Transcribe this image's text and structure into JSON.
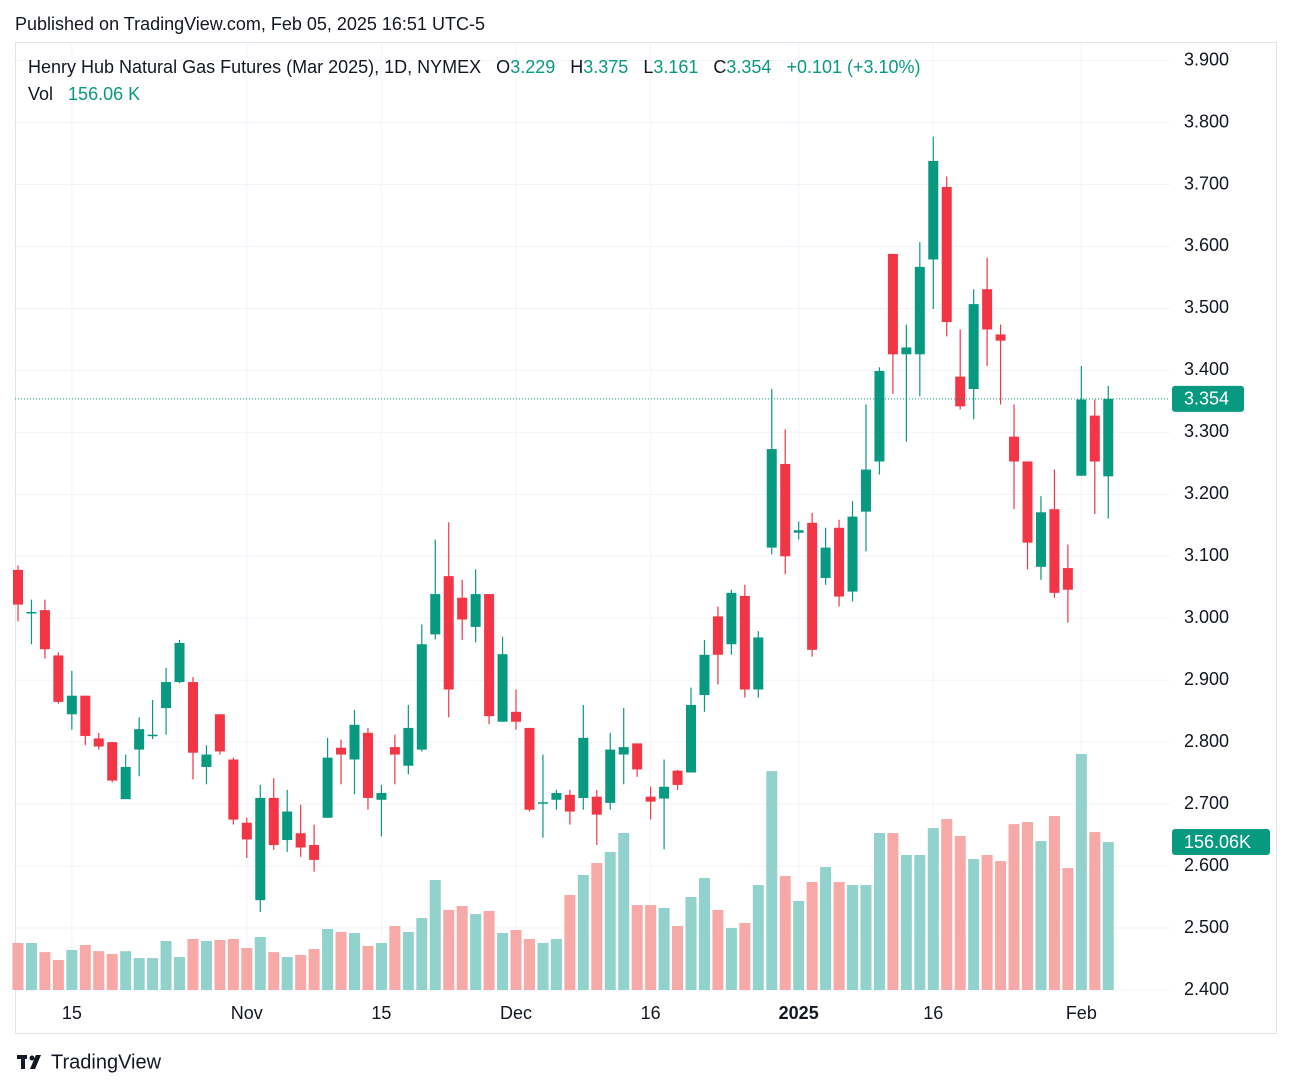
{
  "published": "Published on TradingView.com, Feb 05, 2025 16:51 UTC-5",
  "footer": "TradingView",
  "chart_data": {
    "type": "candlestick",
    "title": "Henry Hub Natural Gas Futures (Mar 2025), 1D, NYMEX",
    "ohlc_labels": [
      "O",
      "H",
      "L",
      "C"
    ],
    "change": "+0.101 (+3.10%)",
    "up_color": "#089981",
    "down_color": "#f23645",
    "volume_up_color": "#92d2cc",
    "volume_down_color": "#f7a9a7",
    "categories": [
      null,
      null,
      null,
      null,
      "15",
      null,
      null,
      null,
      null,
      null,
      null,
      null,
      null,
      null,
      null,
      null,
      null,
      "Nov",
      null,
      null,
      null,
      null,
      null,
      null,
      null,
      null,
      null,
      "15",
      null,
      null,
      null,
      null,
      null,
      null,
      null,
      null,
      null,
      "Dec",
      null,
      null,
      null,
      null,
      null,
      null,
      null,
      null,
      null,
      "16",
      null,
      null,
      null,
      null,
      null,
      null,
      null,
      null,
      null,
      null,
      "2025",
      null,
      null,
      null,
      null,
      null,
      null,
      null,
      null,
      null,
      "16",
      null,
      null,
      null,
      null,
      null,
      null,
      null,
      null,
      null,
      null,
      "Feb",
      null,
      null
    ],
    "open": [
      3.078,
      3.008,
      3.013,
      2.94,
      2.845,
      2.875,
      2.806,
      2.8,
      2.708,
      2.788,
      2.81,
      2.855,
      2.897,
      2.897,
      2.76,
      2.845,
      2.772,
      2.67,
      2.545,
      2.71,
      2.642,
      2.653,
      2.634,
      2.678,
      2.791,
      2.772,
      2.815,
      2.707,
      2.792,
      2.762,
      2.788,
      2.974,
      3.068,
      3.033,
      2.986,
      3.039,
      2.833,
      2.849,
      2.823,
      2.702,
      2.707,
      2.715,
      2.71,
      2.712,
      2.702,
      2.78,
      2.798,
      2.712,
      2.709,
      2.754,
      2.751,
      2.876,
      3.003,
      2.958,
      3.036,
      2.885,
      3.114,
      3.249,
      3.138,
      3.154,
      3.065,
      3.146,
      3.043,
      3.172,
      3.253,
      3.588,
      3.426,
      3.426,
      3.579,
      3.696,
      3.39,
      3.37,
      3.531,
      3.458,
      3.293,
      3.253,
      3.083,
      3.176,
      3.081,
      3.23,
      3.327,
      3.229
    ],
    "high": [
      3.085,
      3.03,
      3.03,
      2.945,
      2.915,
      2.875,
      2.815,
      2.8,
      2.78,
      2.84,
      2.868,
      2.92,
      2.965,
      2.905,
      2.795,
      2.845,
      2.775,
      2.678,
      2.731,
      2.742,
      2.723,
      2.699,
      2.667,
      2.807,
      2.804,
      2.852,
      2.823,
      2.731,
      2.812,
      2.86,
      2.99,
      3.127,
      3.155,
      3.062,
      3.079,
      3.039,
      2.97,
      2.885,
      2.823,
      2.78,
      2.723,
      2.723,
      2.86,
      2.723,
      2.815,
      2.855,
      2.798,
      2.728,
      2.772,
      2.755,
      2.888,
      2.965,
      3.019,
      3.046,
      3.054,
      2.979,
      3.37,
      3.305,
      3.156,
      3.17,
      3.146,
      3.159,
      3.189,
      3.345,
      3.405,
      3.588,
      3.474,
      3.607,
      3.777,
      3.713,
      3.466,
      3.531,
      3.582,
      3.474,
      3.345,
      3.253,
      3.197,
      3.24,
      3.119,
      3.407,
      3.353,
      3.375
    ],
    "low": [
      2.995,
      2.958,
      2.935,
      2.862,
      2.82,
      2.795,
      2.788,
      2.735,
      2.708,
      2.745,
      2.805,
      2.812,
      2.895,
      2.74,
      2.732,
      2.78,
      2.667,
      2.613,
      2.526,
      2.626,
      2.623,
      2.615,
      2.591,
      2.678,
      2.732,
      2.716,
      2.691,
      2.648,
      2.732,
      2.748,
      2.785,
      2.966,
      2.84,
      2.965,
      2.961,
      2.829,
      2.833,
      2.82,
      2.688,
      2.646,
      2.691,
      2.667,
      2.691,
      2.634,
      2.691,
      2.732,
      2.744,
      2.675,
      2.627,
      2.723,
      2.751,
      2.849,
      2.893,
      2.941,
      2.872,
      2.872,
      3.103,
      3.071,
      3.127,
      2.938,
      3.054,
      3.019,
      3.027,
      3.108,
      3.232,
      3.362,
      3.285,
      3.358,
      3.499,
      3.455,
      3.337,
      3.321,
      3.407,
      3.345,
      3.176,
      3.079,
      3.062,
      3.033,
      2.993,
      3.23,
      3.168,
      3.161
    ],
    "close": [
      3.022,
      3.01,
      2.95,
      2.865,
      2.875,
      2.81,
      2.793,
      2.738,
      2.76,
      2.821,
      2.812,
      2.897,
      2.96,
      2.783,
      2.78,
      2.785,
      2.675,
      2.643,
      2.71,
      2.634,
      2.688,
      2.63,
      2.61,
      2.775,
      2.78,
      2.828,
      2.71,
      2.718,
      2.78,
      2.823,
      2.958,
      3.039,
      2.885,
      2.998,
      3.039,
      2.842,
      2.942,
      2.833,
      2.691,
      2.703,
      2.718,
      2.688,
      2.807,
      2.683,
      2.788,
      2.792,
      2.756,
      2.704,
      2.728,
      2.731,
      2.86,
      2.941,
      2.941,
      3.041,
      2.885,
      2.969,
      3.273,
      3.1,
      3.142,
      2.949,
      3.114,
      3.035,
      3.164,
      3.24,
      3.399,
      3.426,
      3.437,
      3.567,
      3.738,
      3.478,
      3.342,
      3.507,
      3.466,
      3.448,
      3.253,
      3.122,
      3.171,
      3.041,
      3.046,
      3.353,
      3.253,
      3.354
    ],
    "volume": {
      "name": "Vol",
      "last_label": "156.06 K",
      "axis_label": "156.06K",
      "values": [
        49.6,
        49.6,
        40,
        31.6,
        42.2,
        47.5,
        41,
        38,
        41,
        33.7,
        33.7,
        51.7,
        34.8,
        53.8,
        51.7,
        52.7,
        53.8,
        44.3,
        55.9,
        40,
        34.8,
        36.9,
        43.2,
        64.3,
        61.2,
        60.1,
        46.4,
        49.6,
        67.5,
        61.2,
        75.9,
        116,
        84.4,
        88.6,
        80.1,
        83.3,
        60.1,
        63.3,
        53.8,
        49.6,
        53.8,
        100.2,
        121.3,
        133.9,
        145.5,
        165.6,
        89.6,
        89.6,
        86.5,
        67.5,
        98.1,
        118.1,
        84.4,
        65.4,
        70.7,
        110.7,
        230.9,
        120.2,
        93.9,
        113.9,
        129.7,
        113.9,
        110.7,
        110.7,
        165.6,
        165.6,
        142.4,
        142.4,
        170.8,
        180.3,
        162.4,
        138.1,
        142.4,
        136,
        175,
        177.2,
        157.1,
        183.5,
        128.6,
        248.9,
        166.6,
        156.06
      ],
      "vlim": [
        0,
        1000
      ]
    },
    "ylim": [
      2.4,
      3.93
    ],
    "yticks": [
      {
        "value": 2.4,
        "label": "2.400"
      },
      {
        "value": 2.5,
        "label": "2.500"
      },
      {
        "value": 2.6,
        "label": "2.600"
      },
      {
        "value": 2.7,
        "label": "2.700"
      },
      {
        "value": 2.8,
        "label": "2.800"
      },
      {
        "value": 2.9,
        "label": "2.900"
      },
      {
        "value": 3.0,
        "label": "3.000"
      },
      {
        "value": 3.1,
        "label": "3.100"
      },
      {
        "value": 3.2,
        "label": "3.200"
      },
      {
        "value": 3.3,
        "label": "3.300"
      },
      {
        "value": 3.4,
        "label": "3.400"
      },
      {
        "value": 3.5,
        "label": "3.500"
      },
      {
        "value": 3.6,
        "label": "3.600"
      },
      {
        "value": 3.7,
        "label": "3.700"
      },
      {
        "value": 3.8,
        "label": "3.800"
      },
      {
        "value": 3.9,
        "label": "3.900"
      }
    ],
    "grid": true
  }
}
